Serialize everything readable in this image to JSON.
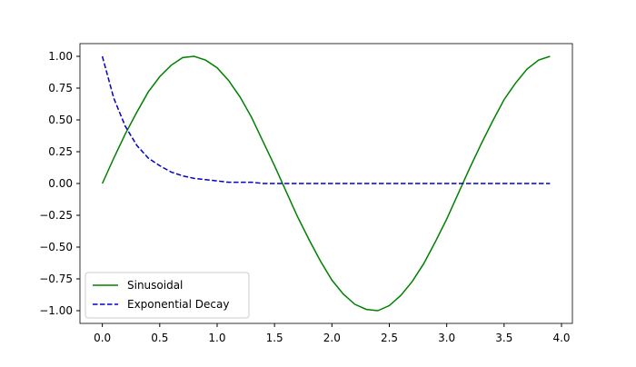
{
  "chart_data": {
    "type": "line",
    "x": [
      0,
      0.1,
      0.2,
      0.3,
      0.4,
      0.5,
      0.6,
      0.7,
      0.8,
      0.9,
      1.0,
      1.1,
      1.2,
      1.3,
      1.4,
      1.5,
      1.6,
      1.7,
      1.8,
      1.9,
      2.0,
      2.1,
      2.2,
      2.3,
      2.4,
      2.5,
      2.6,
      2.7,
      2.8,
      2.9,
      3.0,
      3.1,
      3.2,
      3.3,
      3.4,
      3.5,
      3.6,
      3.7,
      3.8,
      3.9
    ],
    "series": [
      {
        "name": "Sinusoidal",
        "color": "#008000",
        "dash": false,
        "values": [
          0,
          0.2,
          0.39,
          0.56,
          0.72,
          0.84,
          0.93,
          0.99,
          1.0,
          0.97,
          0.91,
          0.81,
          0.68,
          0.52,
          0.33,
          0.14,
          -0.06,
          -0.26,
          -0.44,
          -0.61,
          -0.76,
          -0.87,
          -0.95,
          -0.99,
          -1.0,
          -0.96,
          -0.88,
          -0.77,
          -0.63,
          -0.46,
          -0.28,
          -0.08,
          0.12,
          0.31,
          0.49,
          0.66,
          0.79,
          0.9,
          0.97,
          1.0
        ]
      },
      {
        "name": "Exponential Decay",
        "color": "#0000cd",
        "dash": true,
        "values": [
          1,
          0.67,
          0.45,
          0.3,
          0.2,
          0.14,
          0.09,
          0.06,
          0.04,
          0.03,
          0.02,
          0.01,
          0.01,
          0.01,
          0,
          0,
          0,
          0,
          0,
          0,
          0,
          0,
          0,
          0,
          0,
          0,
          0,
          0,
          0,
          0,
          0,
          0,
          0,
          0,
          0,
          0,
          0,
          0,
          0,
          0
        ]
      }
    ],
    "xlim": [
      -0.195,
      4.095
    ],
    "ylim": [
      -1.1,
      1.1
    ],
    "xticks": [
      {
        "value": 0,
        "label": "0.0"
      },
      0.5,
      {
        "value": 1,
        "label": "1.0"
      },
      1.5,
      {
        "value": 2,
        "label": "2.0"
      },
      2.5,
      {
        "value": 3,
        "label": "3.0"
      },
      3.5,
      {
        "value": 4,
        "label": "4.0"
      }
    ],
    "yticks": [
      {
        "value": -1,
        "label": "−1.00"
      },
      {
        "value": -0.75,
        "label": "−0.75"
      },
      {
        "value": -0.5,
        "label": "−0.50"
      },
      {
        "value": -0.25,
        "label": "−0.25"
      },
      {
        "value": 0,
        "label": "0.00"
      },
      {
        "value": 0.25,
        "label": "0.25"
      },
      {
        "value": 0.5,
        "label": "0.50"
      },
      {
        "value": 0.75,
        "label": "0.75"
      },
      {
        "value": 1,
        "label": "1.00"
      }
    ],
    "legend": "lower left"
  }
}
